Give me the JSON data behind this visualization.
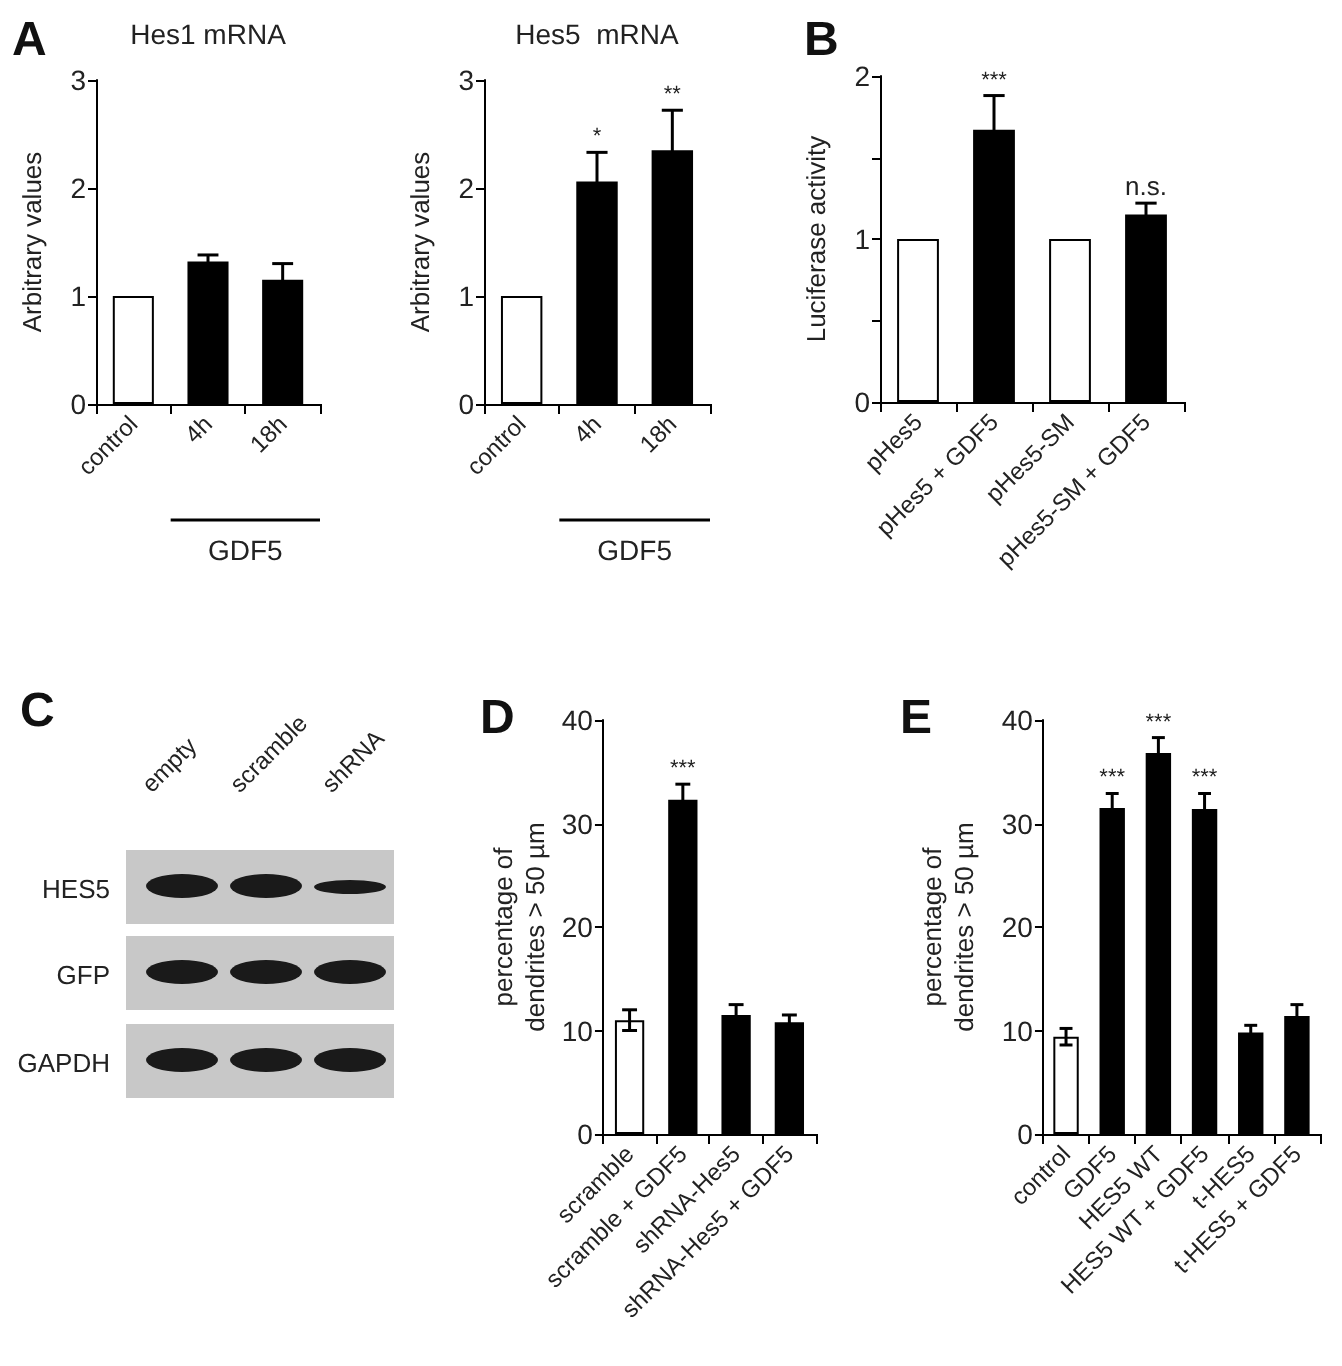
{
  "chart_data": [
    {
      "type": "bar",
      "title": "Hes1 mRNA",
      "ylabel": "Arbitrary values",
      "categories": [
        "control",
        "4h",
        "18h"
      ],
      "values": [
        1,
        1.32,
        1.15
      ],
      "errors": [
        null,
        0.06,
        0.15
      ],
      "colors": [
        "#ffffff",
        "#000000",
        "#000000"
      ],
      "ylim": [
        0,
        3
      ],
      "yticks": [
        0,
        1,
        2,
        3
      ],
      "grid": false,
      "annotations": [
        "A",
        "GDF5"
      ]
    },
    {
      "type": "bar",
      "title": "Hes5  mRNA",
      "ylabel": "Arbitrary values",
      "categories": [
        "control",
        "4h",
        "18h"
      ],
      "values": [
        1,
        2.06,
        2.35
      ],
      "errors": [
        null,
        0.27,
        0.37
      ],
      "colors": [
        "#ffffff",
        "#000000",
        "#000000"
      ],
      "ylim": [
        0,
        3
      ],
      "yticks": [
        0,
        1,
        2,
        3
      ],
      "grid": false,
      "annotations": [
        {
          "text": "*",
          "x": "4h",
          "y": 2.33
        },
        {
          "text": "**",
          "x": "18h",
          "y": 2.72
        },
        "GDF5"
      ]
    },
    {
      "type": "bar",
      "ylabel": "Luciferase activity",
      "categories": [
        "pHes5",
        "pHes5 + GDF5",
        "pHes5-SM",
        "pHes5-SM + GDF5"
      ],
      "values": [
        1,
        1.67,
        1,
        1.15
      ],
      "errors": [
        null,
        0.21,
        null,
        0.07
      ],
      "colors": [
        "#ffffff",
        "#000000",
        "#ffffff",
        "#000000"
      ],
      "ylim": [
        0,
        2
      ],
      "yticks": [
        0,
        {
          "value": 0.5,
          "label": null
        },
        1,
        {
          "value": 1.5,
          "label": null
        },
        2
      ],
      "grid": false,
      "annotations": [
        "B",
        {
          "text": "***",
          "x": "pHes5 + GDF5",
          "y": 1.88
        },
        {
          "text": "n.s.",
          "x": "pHes5-SM + GDF5",
          "y": 1.22
        }
      ]
    },
    {
      "type": "other",
      "annotations": [
        "C",
        "empty",
        "scramble",
        "shRNA",
        "HES5",
        "GFP",
        "GAPDH"
      ]
    },
    {
      "type": "bar",
      "ylabel": "percentage of\ndendrites > 50 µm",
      "categories": [
        "scramble",
        "scramble + GDF5",
        "shRNA-Hes5",
        "shRNA-Hes5 + GDF5"
      ],
      "values": [
        11,
        32.3,
        11.5,
        10.8
      ],
      "errors": [
        1,
        1.5,
        1,
        0.7
      ],
      "colors": [
        "#ffffff",
        "#000000",
        "#000000",
        "#000000"
      ],
      "ylim": [
        0,
        40
      ],
      "yticks": [
        0,
        10,
        20,
        30,
        40
      ],
      "grid": false,
      "annotations": [
        "D",
        {
          "text": "***",
          "x": "scramble + GDF5",
          "y": 33.8
        }
      ]
    },
    {
      "type": "bar",
      "ylabel": "percentage of\ndendrites > 50 µm",
      "categories": [
        "control",
        "GDF5",
        "HES5 WT",
        "HES5 WT + GDF5",
        "t-HES5",
        "t-HES5 + GDF5"
      ],
      "values": [
        9.4,
        31.5,
        36.8,
        31.4,
        9.8,
        11.4
      ],
      "errors": [
        0.8,
        1.4,
        1.5,
        1.5,
        0.7,
        1.1
      ],
      "colors": [
        "#ffffff",
        "#000000",
        "#000000",
        "#000000",
        "#000000",
        "#000000"
      ],
      "ylim": [
        0,
        40
      ],
      "yticks": [
        0,
        10,
        20,
        30,
        40
      ],
      "grid": false,
      "annotations": [
        "E",
        {
          "text": "***",
          "x": "GDF5",
          "y": 32.9
        },
        {
          "text": "***",
          "x": "HES5 WT",
          "y": 38.3
        },
        {
          "text": "***",
          "x": "HES5 WT + GDF5",
          "y": 32.9
        }
      ]
    }
  ]
}
